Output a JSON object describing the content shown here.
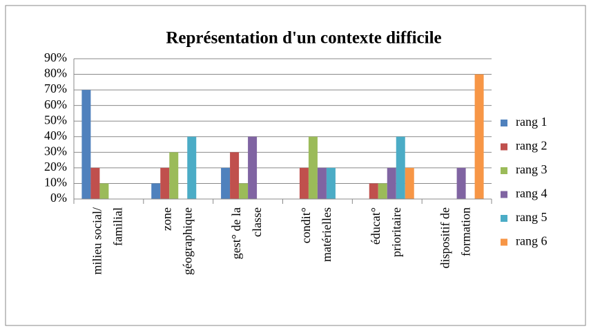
{
  "chart_data": {
    "type": "bar",
    "title": "Représentation d'un contexte difficile",
    "categories": [
      [
        "milieu social/",
        "familial"
      ],
      [
        "zone",
        "géographique"
      ],
      [
        "gest° de la",
        "classe"
      ],
      [
        "condit°",
        "matérielles"
      ],
      [
        "éducat°",
        "prioritaire"
      ],
      [
        "dispositif de",
        "formation"
      ]
    ],
    "series": [
      {
        "name": "rang 1",
        "color": "#4f81bd",
        "values": [
          70,
          10,
          20,
          0,
          0,
          0
        ]
      },
      {
        "name": "rang 2",
        "color": "#c0504d",
        "values": [
          20,
          20,
          30,
          20,
          10,
          0
        ]
      },
      {
        "name": "rang 3",
        "color": "#9bbb59",
        "values": [
          10,
          30,
          10,
          40,
          10,
          0
        ]
      },
      {
        "name": "rang 4",
        "color": "#8064a2",
        "values": [
          0,
          0,
          40,
          20,
          20,
          20
        ]
      },
      {
        "name": "rang 5",
        "color": "#4bacc6",
        "values": [
          0,
          40,
          0,
          20,
          40,
          0
        ]
      },
      {
        "name": "rang 6",
        "color": "#f79646",
        "values": [
          0,
          0,
          0,
          0,
          20,
          80
        ]
      }
    ],
    "ylim": [
      0,
      90
    ],
    "yticks": [
      {
        "value": 0,
        "label": "0%"
      },
      {
        "value": 10,
        "label": "10%"
      },
      {
        "value": 20,
        "label": "20%"
      },
      {
        "value": 30,
        "label": "30%"
      },
      {
        "value": 40,
        "label": "40%"
      },
      {
        "value": 50,
        "label": "50%"
      },
      {
        "value": 60,
        "label": "60%"
      },
      {
        "value": 70,
        "label": "70%"
      },
      {
        "value": 80,
        "label": "80%"
      },
      {
        "value": 90,
        "label": "90%"
      }
    ],
    "grid": true,
    "legend": "right"
  }
}
